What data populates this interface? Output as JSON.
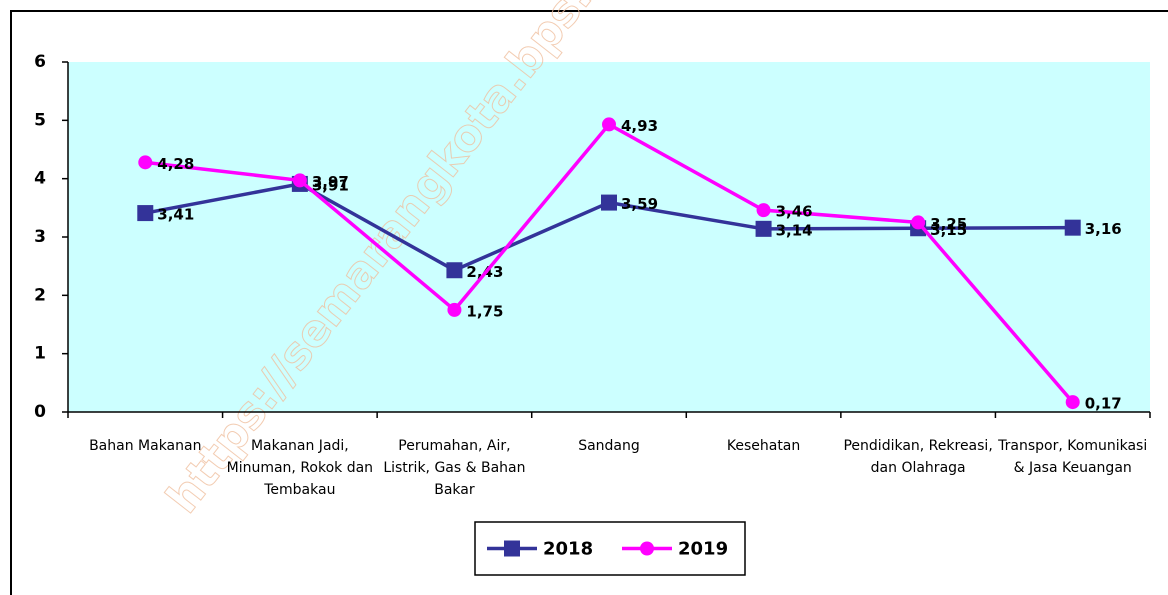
{
  "chart_data": {
    "type": "line",
    "categories": [
      "Bahan Makanan",
      "Makanan Jadi, Minuman, Rokok dan Tembakau",
      "Perumahan, Air, Listrik, Gas & Bahan Bakar",
      "Sandang",
      "Kesehatan",
      "Pendidikan, Rekreasi, dan Olahraga",
      "Transpor, Komunikasi & Jasa Keuangan"
    ],
    "series": [
      {
        "name": "2018",
        "color": "#333399",
        "marker": "square",
        "values": [
          3.41,
          3.91,
          2.43,
          3.59,
          3.14,
          3.15,
          3.16
        ],
        "value_labels": [
          "3,41",
          "3,91",
          "2,43",
          "3,59",
          "3,14",
          "3,15",
          "3,16"
        ]
      },
      {
        "name": "2019",
        "color": "#ff00ff",
        "marker": "circle",
        "values": [
          4.28,
          3.97,
          1.75,
          4.93,
          3.46,
          3.25,
          0.17
        ],
        "value_labels": [
          "4,28",
          "3,97",
          "1,75",
          "4,93",
          "3,46",
          "3,25",
          "0,17"
        ]
      }
    ],
    "ylim": [
      0,
      6
    ],
    "yticks": [
      0,
      1,
      2,
      3,
      4,
      5,
      6
    ],
    "watermark": "https://semarangkota.bps.go.id",
    "plot_background": "#ccffff",
    "legend": "bottom"
  }
}
